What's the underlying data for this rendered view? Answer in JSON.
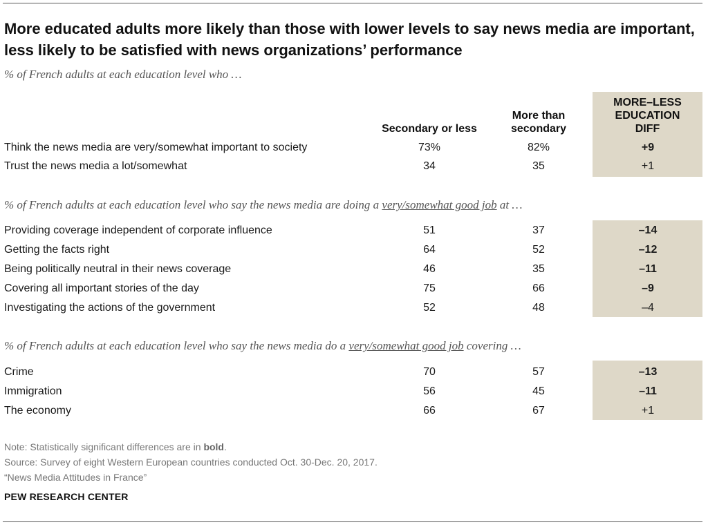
{
  "title": "More educated adults more likely than those with lower levels to say news media are important, less likely to be satisfied with news organizations’ performance",
  "chart_data": {
    "type": "table",
    "columns": {
      "col1": "Secondary or less",
      "col2_line1": "More than",
      "col2_line2": "secondary",
      "diff_line1": "MORE–LESS",
      "diff_line2": "EDUCATION",
      "diff_line3": "DIFF"
    },
    "sections": [
      {
        "subtitle": "% of French adults at each education level who …",
        "rows": [
          {
            "label": "Think the news media are very/somewhat important to society",
            "secondary_or_less": "73%",
            "more_than_secondary": "82%",
            "diff": "+9",
            "significant": true
          },
          {
            "label": "Trust the news media a lot/somewhat",
            "secondary_or_less": "34",
            "more_than_secondary": "35",
            "diff": "+1",
            "significant": false
          }
        ]
      },
      {
        "subtitle_pre": "% of French adults at each education level who say the news media are doing a ",
        "subtitle_u": "very/somewhat good job",
        "subtitle_post": " at …",
        "rows": [
          {
            "label": "Providing coverage independent of corporate influence",
            "secondary_or_less": "51",
            "more_than_secondary": "37",
            "diff": "–14",
            "significant": true
          },
          {
            "label": "Getting the facts right",
            "secondary_or_less": "64",
            "more_than_secondary": "52",
            "diff": "–12",
            "significant": true
          },
          {
            "label": "Being politically neutral in their news coverage",
            "secondary_or_less": "46",
            "more_than_secondary": "35",
            "diff": "–11",
            "significant": true
          },
          {
            "label": "Covering all important stories of the day",
            "secondary_or_less": "75",
            "more_than_secondary": "66",
            "diff": "–9",
            "significant": true
          },
          {
            "label": "Investigating the actions of the government",
            "secondary_or_less": "52",
            "more_than_secondary": "48",
            "diff": "–4",
            "significant": false
          }
        ]
      },
      {
        "subtitle_pre": "% of French adults at each education level who say the news media do a ",
        "subtitle_u": "very/somewhat good job",
        "subtitle_post": " covering …",
        "rows": [
          {
            "label": "Crime",
            "secondary_or_less": "70",
            "more_than_secondary": "57",
            "diff": "–13",
            "significant": true
          },
          {
            "label": "Immigration",
            "secondary_or_less": "56",
            "more_than_secondary": "45",
            "diff": "–11",
            "significant": true
          },
          {
            "label": "The economy",
            "secondary_or_less": "66",
            "more_than_secondary": "67",
            "diff": "+1",
            "significant": false
          }
        ]
      }
    ]
  },
  "notes": {
    "note_pre": "Note: Statistically significant differences are in ",
    "note_bold": "bold",
    "note_post": ".",
    "source": "Source: Survey of eight Western European countries conducted Oct. 30-Dec. 20, 2017.",
    "report": "“News Media Attitudes in France”"
  },
  "org": "PEW RESEARCH CENTER",
  "colors": {
    "diff_bg": "#ded8c8",
    "rule": "#555555",
    "subtitle": "#555555",
    "note": "#777777"
  }
}
